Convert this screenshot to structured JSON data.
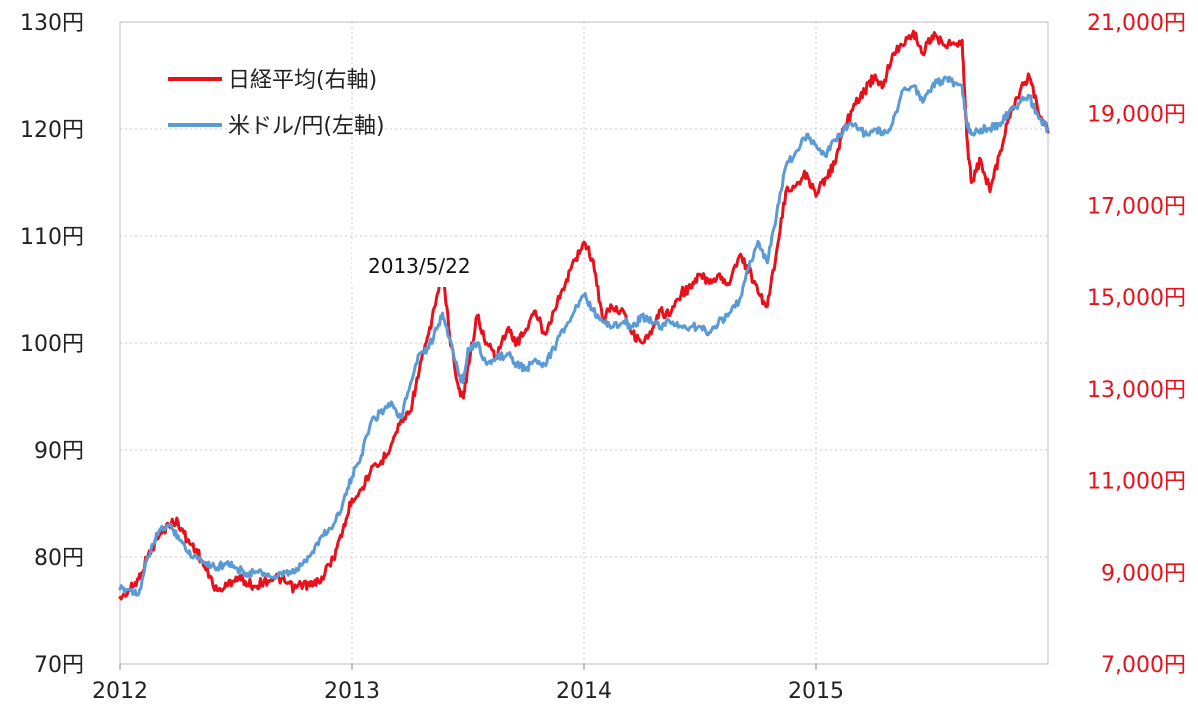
{
  "chart_data": {
    "type": "line",
    "title": "",
    "x_ticks": [
      "2012",
      "2013",
      "2014",
      "2015"
    ],
    "x_range": [
      2012.0,
      2016.0
    ],
    "y_left": {
      "range": [
        70,
        130
      ],
      "ticks": [
        "70円",
        "80円",
        "90円",
        "100円",
        "110円",
        "120円",
        "130円"
      ],
      "gridlines": [
        80,
        90,
        100,
        110,
        120
      ]
    },
    "y_right": {
      "range": [
        7000,
        21000
      ],
      "ticks": [
        "7,000円",
        "9,000円",
        "11,000円",
        "13,000円",
        "15,000円",
        "17,000円",
        "19,000円",
        "21,000円"
      ]
    },
    "annotation": "2013/5/22",
    "series": [
      {
        "name": "日経平均(右軸)",
        "axis": "right",
        "color": "#e8101a",
        "points": [
          [
            2012.0,
            8450
          ],
          [
            2012.04,
            8600
          ],
          [
            2012.08,
            8850
          ],
          [
            2012.12,
            9350
          ],
          [
            2012.17,
            9800
          ],
          [
            2012.21,
            10050
          ],
          [
            2012.25,
            10100
          ],
          [
            2012.29,
            9700
          ],
          [
            2012.33,
            9500
          ],
          [
            2012.37,
            9050
          ],
          [
            2012.42,
            8600
          ],
          [
            2012.46,
            8700
          ],
          [
            2012.5,
            8900
          ],
          [
            2012.54,
            8800
          ],
          [
            2012.58,
            8700
          ],
          [
            2012.62,
            8800
          ],
          [
            2012.67,
            8900
          ],
          [
            2012.71,
            8800
          ],
          [
            2012.75,
            8650
          ],
          [
            2012.79,
            8750
          ],
          [
            2012.83,
            8700
          ],
          [
            2012.87,
            8900
          ],
          [
            2012.92,
            9300
          ],
          [
            2012.96,
            9900
          ],
          [
            2013.0,
            10600
          ],
          [
            2013.04,
            10800
          ],
          [
            2013.08,
            11200
          ],
          [
            2013.12,
            11350
          ],
          [
            2013.17,
            11800
          ],
          [
            2013.21,
            12300
          ],
          [
            2013.25,
            12500
          ],
          [
            2013.29,
            13400
          ],
          [
            2013.33,
            14200
          ],
          [
            2013.37,
            15100
          ],
          [
            2013.39,
            15600
          ],
          [
            2013.42,
            14200
          ],
          [
            2013.46,
            13000
          ],
          [
            2013.48,
            12800
          ],
          [
            2013.5,
            13500
          ],
          [
            2013.54,
            14600
          ],
          [
            2013.58,
            14000
          ],
          [
            2013.62,
            13700
          ],
          [
            2013.67,
            14300
          ],
          [
            2013.71,
            14000
          ],
          [
            2013.75,
            14300
          ],
          [
            2013.79,
            14700
          ],
          [
            2013.83,
            14200
          ],
          [
            2013.87,
            14700
          ],
          [
            2013.92,
            15300
          ],
          [
            2013.96,
            15800
          ],
          [
            2014.0,
            16200
          ],
          [
            2014.04,
            15800
          ],
          [
            2014.08,
            14500
          ],
          [
            2014.12,
            14800
          ],
          [
            2014.17,
            14700
          ],
          [
            2014.21,
            14200
          ],
          [
            2014.25,
            14000
          ],
          [
            2014.29,
            14200
          ],
          [
            2014.33,
            14700
          ],
          [
            2014.37,
            14600
          ],
          [
            2014.42,
            15100
          ],
          [
            2014.46,
            15200
          ],
          [
            2014.5,
            15500
          ],
          [
            2014.54,
            15300
          ],
          [
            2014.58,
            15500
          ],
          [
            2014.62,
            15300
          ],
          [
            2014.67,
            15900
          ],
          [
            2014.71,
            15600
          ],
          [
            2014.75,
            15100
          ],
          [
            2014.79,
            14800
          ],
          [
            2014.83,
            16000
          ],
          [
            2014.87,
            17300
          ],
          [
            2014.92,
            17500
          ],
          [
            2014.96,
            17700
          ],
          [
            2015.0,
            17200
          ],
          [
            2015.04,
            17600
          ],
          [
            2015.08,
            17900
          ],
          [
            2015.12,
            18700
          ],
          [
            2015.17,
            19200
          ],
          [
            2015.21,
            19500
          ],
          [
            2015.25,
            19800
          ],
          [
            2015.29,
            19600
          ],
          [
            2015.33,
            20300
          ],
          [
            2015.37,
            20500
          ],
          [
            2015.42,
            20800
          ],
          [
            2015.46,
            20300
          ],
          [
            2015.5,
            20700
          ],
          [
            2015.54,
            20600
          ],
          [
            2015.58,
            20500
          ],
          [
            2015.63,
            20600
          ],
          [
            2015.65,
            18500
          ],
          [
            2015.67,
            17500
          ],
          [
            2015.71,
            18000
          ],
          [
            2015.75,
            17300
          ],
          [
            2015.79,
            18100
          ],
          [
            2015.83,
            18900
          ],
          [
            2015.88,
            19500
          ],
          [
            2015.92,
            19800
          ],
          [
            2015.96,
            19000
          ],
          [
            2016.0,
            18600
          ]
        ]
      },
      {
        "name": "米ドル/円(左軸)",
        "axis": "left",
        "color": "#5b9bd5",
        "points": [
          [
            2012.0,
            77.0
          ],
          [
            2012.04,
            77.0
          ],
          [
            2012.08,
            76.5
          ],
          [
            2012.12,
            80.0
          ],
          [
            2012.17,
            82.5
          ],
          [
            2012.21,
            83.0
          ],
          [
            2012.25,
            82.0
          ],
          [
            2012.29,
            80.5
          ],
          [
            2012.33,
            80.0
          ],
          [
            2012.37,
            79.5
          ],
          [
            2012.42,
            79.0
          ],
          [
            2012.46,
            79.5
          ],
          [
            2012.5,
            79.0
          ],
          [
            2012.54,
            78.5
          ],
          [
            2012.58,
            78.5
          ],
          [
            2012.62,
            78.5
          ],
          [
            2012.67,
            78.0
          ],
          [
            2012.71,
            78.5
          ],
          [
            2012.75,
            78.5
          ],
          [
            2012.79,
            79.5
          ],
          [
            2012.83,
            80.5
          ],
          [
            2012.87,
            82.0
          ],
          [
            2012.92,
            83.0
          ],
          [
            2012.96,
            85.0
          ],
          [
            2013.0,
            87.5
          ],
          [
            2013.04,
            89.5
          ],
          [
            2013.08,
            92.5
          ],
          [
            2013.12,
            93.5
          ],
          [
            2013.17,
            94.5
          ],
          [
            2013.21,
            93.0
          ],
          [
            2013.25,
            96.0
          ],
          [
            2013.29,
            99.0
          ],
          [
            2013.33,
            99.5
          ],
          [
            2013.37,
            101.5
          ],
          [
            2013.39,
            102.8
          ],
          [
            2013.42,
            100.5
          ],
          [
            2013.46,
            97.0
          ],
          [
            2013.48,
            96.5
          ],
          [
            2013.5,
            99.5
          ],
          [
            2013.54,
            100.0
          ],
          [
            2013.58,
            98.0
          ],
          [
            2013.62,
            98.5
          ],
          [
            2013.67,
            99.0
          ],
          [
            2013.71,
            98.0
          ],
          [
            2013.75,
            97.5
          ],
          [
            2013.79,
            98.5
          ],
          [
            2013.83,
            98.0
          ],
          [
            2013.87,
            99.5
          ],
          [
            2013.92,
            101.5
          ],
          [
            2013.96,
            103.0
          ],
          [
            2014.0,
            104.5
          ],
          [
            2014.04,
            103.0
          ],
          [
            2014.08,
            102.0
          ],
          [
            2014.12,
            101.5
          ],
          [
            2014.17,
            102.0
          ],
          [
            2014.21,
            101.5
          ],
          [
            2014.25,
            102.5
          ],
          [
            2014.29,
            102.0
          ],
          [
            2014.33,
            101.5
          ],
          [
            2014.37,
            102.0
          ],
          [
            2014.42,
            101.5
          ],
          [
            2014.46,
            101.5
          ],
          [
            2014.5,
            101.5
          ],
          [
            2014.54,
            101.0
          ],
          [
            2014.58,
            102.0
          ],
          [
            2014.62,
            102.5
          ],
          [
            2014.67,
            104.0
          ],
          [
            2014.71,
            107.0
          ],
          [
            2014.75,
            109.5
          ],
          [
            2014.79,
            107.5
          ],
          [
            2014.83,
            112.0
          ],
          [
            2014.87,
            116.5
          ],
          [
            2014.92,
            118.0
          ],
          [
            2014.96,
            119.5
          ],
          [
            2015.0,
            118.5
          ],
          [
            2015.04,
            117.5
          ],
          [
            2015.08,
            119.0
          ],
          [
            2015.12,
            120.0
          ],
          [
            2015.17,
            120.5
          ],
          [
            2015.21,
            119.5
          ],
          [
            2015.25,
            120.0
          ],
          [
            2015.29,
            119.5
          ],
          [
            2015.33,
            120.5
          ],
          [
            2015.37,
            123.5
          ],
          [
            2015.42,
            124.0
          ],
          [
            2015.46,
            122.5
          ],
          [
            2015.5,
            124.0
          ],
          [
            2015.54,
            124.5
          ],
          [
            2015.58,
            124.5
          ],
          [
            2015.63,
            124.0
          ],
          [
            2015.65,
            120.5
          ],
          [
            2015.67,
            119.5
          ],
          [
            2015.71,
            120.0
          ],
          [
            2015.75,
            120.0
          ],
          [
            2015.79,
            120.5
          ],
          [
            2015.83,
            121.5
          ],
          [
            2015.88,
            122.5
          ],
          [
            2015.92,
            123.0
          ],
          [
            2015.96,
            121.0
          ],
          [
            2016.0,
            120.0
          ]
        ]
      }
    ]
  }
}
